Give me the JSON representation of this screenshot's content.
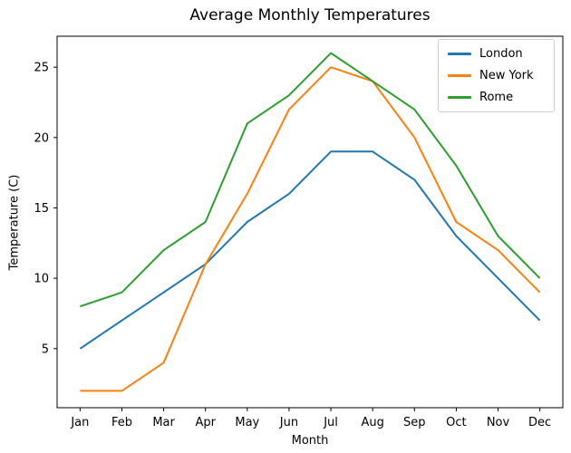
{
  "chart_data": {
    "type": "line",
    "title": "Average Monthly Temperatures",
    "xlabel": "Month",
    "ylabel": "Temperature (C)",
    "categories": [
      "Jan",
      "Feb",
      "Mar",
      "Apr",
      "May",
      "Jun",
      "Jul",
      "Aug",
      "Sep",
      "Oct",
      "Nov",
      "Dec"
    ],
    "series": [
      {
        "name": "London",
        "color": "#1f77b4",
        "values": [
          5,
          7,
          9,
          11,
          14,
          16,
          19,
          19,
          17,
          13,
          10,
          7
        ]
      },
      {
        "name": "New York",
        "color": "#ff7f0e",
        "values": [
          2,
          2,
          4,
          11,
          16,
          22,
          25,
          24,
          20,
          14,
          12,
          9
        ]
      },
      {
        "name": "Rome",
        "color": "#2ca02c",
        "values": [
          8,
          9,
          12,
          14,
          21,
          23,
          26,
          24,
          22,
          18,
          13,
          10
        ]
      }
    ],
    "yticks": [
      5,
      10,
      15,
      20,
      25
    ],
    "ylim": [
      0.8,
      27.2
    ],
    "xlim": [
      -0.55,
      11.55
    ],
    "grid": false,
    "legend_position": "upper right",
    "line_width": 2
  }
}
